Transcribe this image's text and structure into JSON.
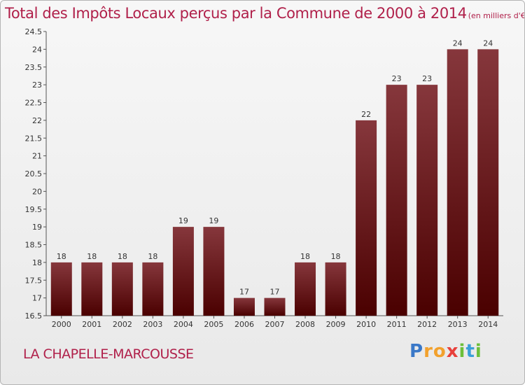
{
  "header": {
    "title": "Total des Impôts Locaux perçus par la Commune de 2000 à 2014",
    "unit": "(en milliers d'€)"
  },
  "footer": {
    "commune": "LA CHAPELLE-MARCOUSSE",
    "logo": [
      {
        "char": "P",
        "color": "#3a78c8"
      },
      {
        "char": "r",
        "color": "#f2a12d"
      },
      {
        "char": "o",
        "color": "#f2a12d"
      },
      {
        "char": "x",
        "color": "#e8403b"
      },
      {
        "char": "i",
        "color": "#6cbf3a"
      },
      {
        "char": "t",
        "color": "#3a9fd8"
      },
      {
        "char": "i",
        "color": "#6cbf3a"
      }
    ]
  },
  "colors": {
    "bar_top": "#86373c",
    "bar_bottom": "#4a0000",
    "title": "#b0204a"
  },
  "chart_data": {
    "type": "bar",
    "categories": [
      "2000",
      "2001",
      "2002",
      "2003",
      "2004",
      "2005",
      "2006",
      "2007",
      "2008",
      "2009",
      "2010",
      "2011",
      "2012",
      "2013",
      "2014"
    ],
    "values": [
      18,
      18,
      18,
      18,
      19,
      19,
      17,
      17,
      18,
      18,
      22,
      23,
      23,
      24,
      24
    ],
    "title": "Total des Impôts Locaux perçus par la Commune de 2000 à 2014",
    "xlabel": "",
    "ylabel": "",
    "ylim": [
      16.5,
      24.5
    ],
    "yticks": [
      "16.5",
      "17",
      "17.5",
      "18",
      "18.5",
      "19",
      "19.5",
      "20",
      "20.5",
      "21",
      "21.5",
      "22",
      "22.5",
      "23",
      "23.5",
      "24",
      "24.5"
    ],
    "grid": false,
    "legend": "none"
  }
}
